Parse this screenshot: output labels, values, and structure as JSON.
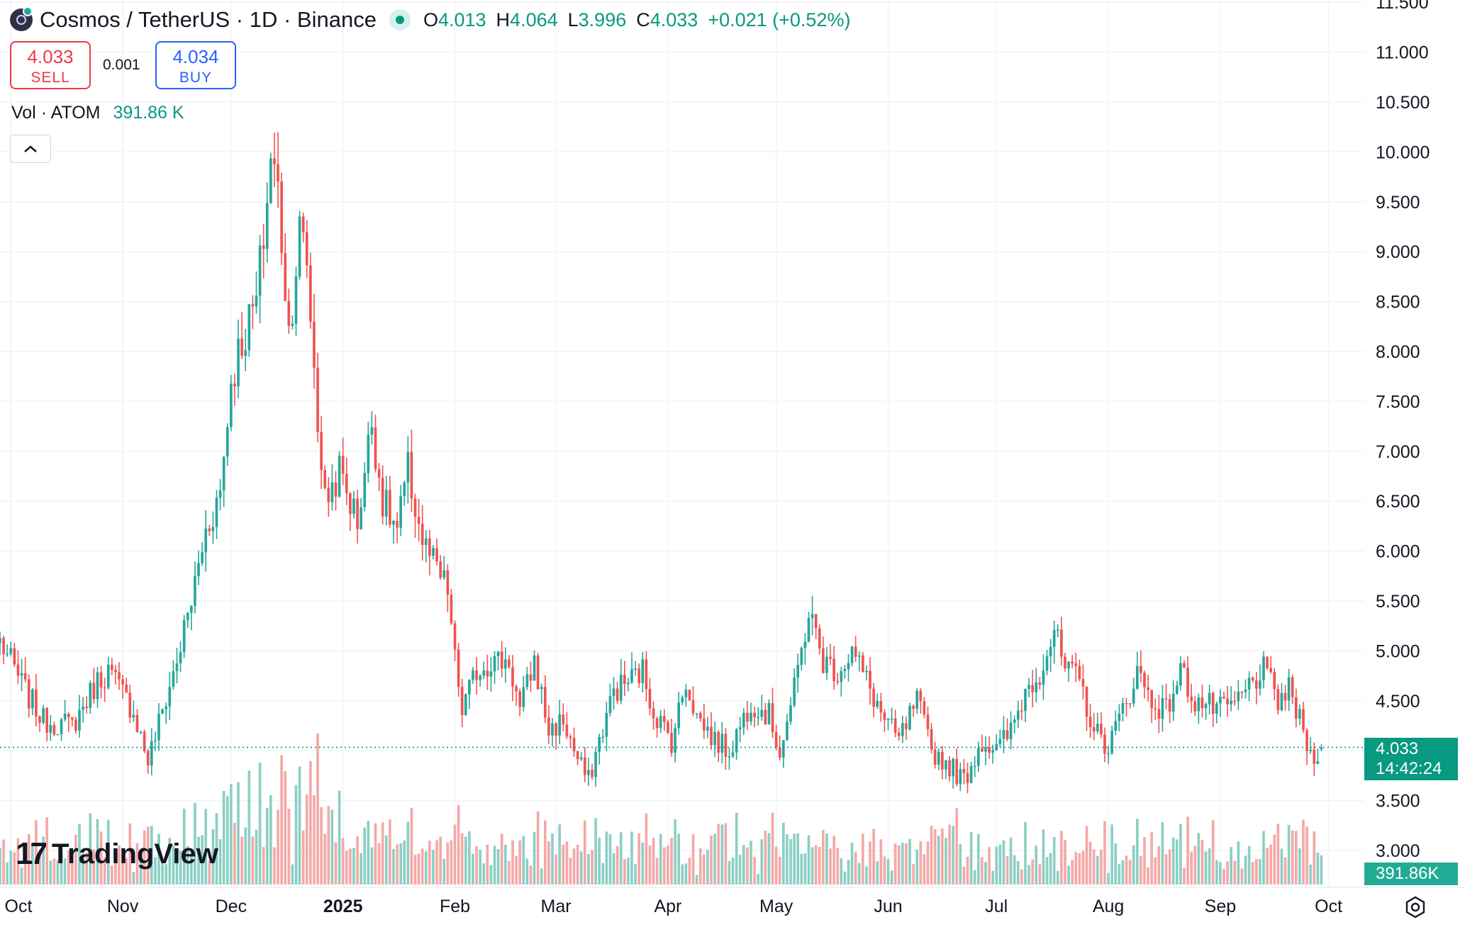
{
  "header": {
    "symbol": "Cosmos / TetherUS · 1D · Binance",
    "ohlc": {
      "o_label": "O",
      "o": "4.013",
      "h_label": "H",
      "h": "4.064",
      "l_label": "L",
      "l": "3.996",
      "c_label": "C",
      "c": "4.033",
      "change": "+0.021 (+0.52%)"
    },
    "status_icon": "market-open-dot-icon"
  },
  "trade": {
    "sell_price": "4.033",
    "sell_label": "SELL",
    "spread": "0.001",
    "buy_price": "4.034",
    "buy_label": "BUY"
  },
  "volume": {
    "label": "Vol · ATOM",
    "value": "391.86 K"
  },
  "controls": {
    "collapse_icon": "chevron-up-icon",
    "settings_icon": "gear-icon"
  },
  "branding": {
    "name": "TradingView",
    "mark": "17"
  },
  "colors": {
    "up": "#26a69a",
    "down": "#ef5350",
    "up_vol": "#8ccfc4",
    "down_vol": "#f4a9a7",
    "last_price": "#089981"
  },
  "chart_data": {
    "type": "candlestick",
    "y_axis": {
      "ticks": [
        "3.000",
        "3.500",
        "4.000",
        "4.500",
        "5.000",
        "5.500",
        "6.000",
        "6.500",
        "7.000",
        "7.500",
        "8.000",
        "8.500",
        "9.000",
        "9.500",
        "10.000",
        "10.500",
        "11.000",
        "11.500"
      ],
      "ylim": [
        2.65,
        11.5
      ]
    },
    "x_axis": {
      "labels": [
        "Oct",
        "Nov",
        "Dec",
        "2025",
        "Feb",
        "Mar",
        "Apr",
        "May",
        "Jun",
        "Jul",
        "Aug",
        "Sep",
        "Oct"
      ],
      "start_date": "2024-09-28",
      "end_date": "2025-10-05"
    },
    "last_price": "4.033",
    "countdown": "14:42:24",
    "last_volume": "391.86K",
    "anchors": [
      [
        "2024-09-28",
        5.1
      ],
      [
        "2024-10-05",
        4.6
      ],
      [
        "2024-10-10",
        4.3
      ],
      [
        "2024-10-18",
        4.25
      ],
      [
        "2024-10-25",
        4.7
      ],
      [
        "2024-10-28",
        4.8
      ],
      [
        "2024-11-04",
        4.4
      ],
      [
        "2024-11-08",
        3.9
      ],
      [
        "2024-11-12",
        4.4
      ],
      [
        "2024-11-16",
        4.9
      ],
      [
        "2024-11-20",
        5.5
      ],
      [
        "2024-11-24",
        6.2
      ],
      [
        "2024-11-28",
        6.6
      ],
      [
        "2024-12-01",
        7.7
      ],
      [
        "2024-12-03",
        8.0
      ],
      [
        "2024-12-08",
        8.5
      ],
      [
        "2024-12-11",
        9.5
      ],
      [
        "2024-12-12",
        10.0
      ],
      [
        "2024-12-14",
        9.6
      ],
      [
        "2024-12-17",
        8.2
      ],
      [
        "2024-12-20",
        9.2
      ],
      [
        "2024-12-22",
        8.9
      ],
      [
        "2024-12-25",
        7.3
      ],
      [
        "2024-12-27",
        6.5
      ],
      [
        "2024-12-31",
        6.8
      ],
      [
        "2025-01-05",
        6.3
      ],
      [
        "2025-01-09",
        7.3
      ],
      [
        "2025-01-12",
        6.5
      ],
      [
        "2025-01-16",
        6.2
      ],
      [
        "2025-01-19",
        6.8
      ],
      [
        "2025-01-23",
        6.1
      ],
      [
        "2025-01-27",
        5.8
      ],
      [
        "2025-01-30",
        5.6
      ],
      [
        "2025-02-01",
        4.9
      ],
      [
        "2025-02-03",
        4.4
      ],
      [
        "2025-02-07",
        4.8
      ],
      [
        "2025-02-11",
        4.9
      ],
      [
        "2025-02-16",
        4.9
      ],
      [
        "2025-02-19",
        4.4
      ],
      [
        "2025-02-23",
        4.9
      ],
      [
        "2025-02-27",
        4.2
      ],
      [
        "2025-03-03",
        4.3
      ],
      [
        "2025-03-07",
        3.9
      ],
      [
        "2025-03-10",
        3.7
      ],
      [
        "2025-03-13",
        4.1
      ],
      [
        "2025-03-17",
        4.6
      ],
      [
        "2025-03-21",
        4.7
      ],
      [
        "2025-03-25",
        4.8
      ],
      [
        "2025-03-28",
        4.4
      ],
      [
        "2025-04-02",
        4.1
      ],
      [
        "2025-04-06",
        4.7
      ],
      [
        "2025-04-09",
        4.35
      ],
      [
        "2025-04-14",
        4.1
      ],
      [
        "2025-04-18",
        4.0
      ],
      [
        "2025-04-24",
        4.5
      ],
      [
        "2025-04-29",
        4.35
      ],
      [
        "2025-05-02",
        4.0
      ],
      [
        "2025-05-06",
        4.6
      ],
      [
        "2025-05-10",
        5.4
      ],
      [
        "2025-05-14",
        4.9
      ],
      [
        "2025-05-18",
        4.8
      ],
      [
        "2025-05-22",
        5.0
      ],
      [
        "2025-05-26",
        4.7
      ],
      [
        "2025-05-31",
        4.3
      ],
      [
        "2025-06-04",
        4.1
      ],
      [
        "2025-06-09",
        4.5
      ],
      [
        "2025-06-13",
        4.0
      ],
      [
        "2025-06-18",
        3.85
      ],
      [
        "2025-06-22",
        3.7
      ],
      [
        "2025-06-27",
        4.1
      ],
      [
        "2025-07-01",
        4.0
      ],
      [
        "2025-07-05",
        4.2
      ],
      [
        "2025-07-09",
        4.6
      ],
      [
        "2025-07-13",
        4.8
      ],
      [
        "2025-07-17",
        5.2
      ],
      [
        "2025-07-20",
        4.8
      ],
      [
        "2025-07-24",
        4.7
      ],
      [
        "2025-07-28",
        4.2
      ],
      [
        "2025-08-01",
        4.05
      ],
      [
        "2025-08-05",
        4.4
      ],
      [
        "2025-08-09",
        4.8
      ],
      [
        "2025-08-13",
        4.5
      ],
      [
        "2025-08-17",
        4.4
      ],
      [
        "2025-08-21",
        4.8
      ],
      [
        "2025-08-25",
        4.5
      ],
      [
        "2025-08-29",
        4.45
      ],
      [
        "2025-09-02",
        4.4
      ],
      [
        "2025-09-06",
        4.5
      ],
      [
        "2025-09-10",
        4.7
      ],
      [
        "2025-09-13",
        4.8
      ],
      [
        "2025-09-17",
        4.5
      ],
      [
        "2025-09-20",
        4.6
      ],
      [
        "2025-09-24",
        4.2
      ],
      [
        "2025-09-26",
        3.95
      ],
      [
        "2025-09-29",
        4.033
      ]
    ]
  }
}
